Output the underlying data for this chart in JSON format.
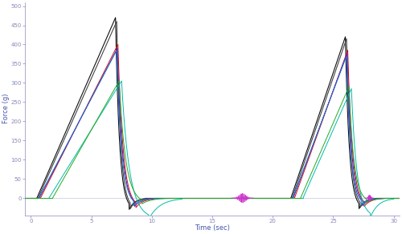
{
  "xlabel": "Time (sec)",
  "ylabel": "Force (g)",
  "xlim": [
    -0.5,
    30.5
  ],
  "ylim": [
    -45,
    510
  ],
  "yticks": [
    0,
    50,
    100,
    150,
    200,
    250,
    300,
    350,
    400,
    450,
    500
  ],
  "xticks": [
    0,
    5,
    10,
    15,
    20,
    25,
    30
  ],
  "bg_color": "#ffffff",
  "axis_color": "#8888bb",
  "label_color": "#4455aa",
  "curves": [
    {
      "color": "#111111",
      "peak1_x": 7.0,
      "peak1": 470,
      "rise_start1": 0.5,
      "fall_end1": 9.5,
      "trough1": -30,
      "peak2_x": 26.0,
      "peak2": 420,
      "rise_start2": 21.5,
      "fall_end2": 28.5,
      "trough2": -28,
      "lw": 0.8
    },
    {
      "color": "#444444",
      "peak1_x": 7.1,
      "peak1": 460,
      "rise_start1": 0.6,
      "fall_end1": 9.6,
      "trough1": -28,
      "peak2_x": 26.1,
      "peak2": 415,
      "rise_start2": 21.6,
      "fall_end2": 28.6,
      "trough2": -25,
      "lw": 0.8
    },
    {
      "color": "#cc1111",
      "peak1_x": 7.2,
      "peak1": 400,
      "rise_start1": 0.8,
      "fall_end1": 10.5,
      "trough1": -25,
      "peak2_x": 26.2,
      "peak2": 385,
      "rise_start2": 21.8,
      "fall_end2": 29.2,
      "trough2": -22,
      "lw": 0.7
    },
    {
      "color": "#7711bb",
      "peak1_x": 7.15,
      "peak1": 390,
      "rise_start1": 0.7,
      "fall_end1": 10.3,
      "trough1": -22,
      "peak2_x": 26.15,
      "peak2": 378,
      "rise_start2": 21.7,
      "fall_end2": 29.0,
      "trough2": -20,
      "lw": 0.7
    },
    {
      "color": "#1177cc",
      "peak1_x": 7.1,
      "peak1": 385,
      "rise_start1": 0.65,
      "fall_end1": 10.2,
      "trough1": -20,
      "peak2_x": 26.1,
      "peak2": 370,
      "rise_start2": 21.65,
      "fall_end2": 28.8,
      "trough2": -18,
      "lw": 0.7
    },
    {
      "color": "#00bbaa",
      "peak1_x": 7.5,
      "peak1": 305,
      "rise_start1": 1.5,
      "fall_end1": 12.5,
      "trough1": -55,
      "peak2_x": 26.5,
      "peak2": 285,
      "rise_start2": 22.5,
      "fall_end2": 30.0,
      "trough2": -50,
      "lw": 0.7
    },
    {
      "color": "#22aa22",
      "peak1_x": 7.3,
      "peak1": 305,
      "rise_start1": 1.8,
      "fall_end1": 11.5,
      "trough1": -15,
      "peak2_x": 26.3,
      "peak2": 290,
      "rise_start2": 22.3,
      "fall_end2": 29.5,
      "trough2": -12,
      "lw": 0.7
    }
  ],
  "noise1_x": 17.5,
  "noise2_x": 28.0,
  "noise_color": "#cc33cc",
  "noise_lw": 0.6
}
